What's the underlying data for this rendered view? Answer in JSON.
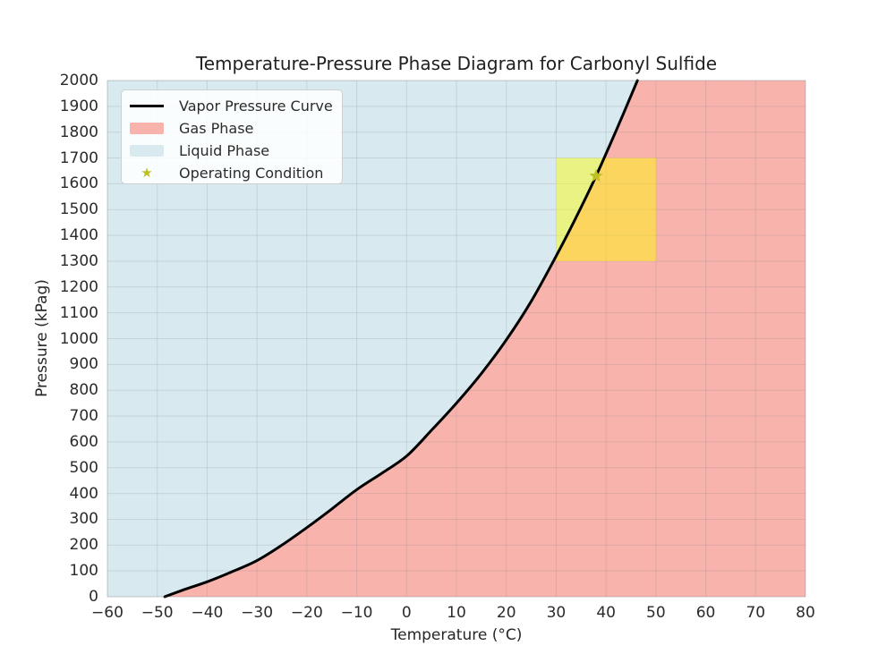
{
  "title": "Temperature-Pressure Phase Diagram for Carbonyl Sulfide",
  "chart_data": {
    "type": "line",
    "title": "Temperature-Pressure Phase Diagram for Carbonyl Sulfide",
    "xlabel": "Temperature (°C)",
    "ylabel": "Pressure (kPag)",
    "xlim": [
      -60,
      80
    ],
    "ylim": [
      0,
      2000
    ],
    "x_ticks": [
      -60,
      -50,
      -40,
      -30,
      -20,
      -10,
      0,
      10,
      20,
      30,
      40,
      50,
      60,
      70,
      80
    ],
    "y_ticks": [
      0,
      100,
      200,
      300,
      400,
      500,
      600,
      700,
      800,
      900,
      1000,
      1100,
      1200,
      1300,
      1400,
      1500,
      1600,
      1700,
      1800,
      1900,
      2000
    ],
    "grid": true,
    "legend_position": "upper left",
    "series": [
      {
        "name": "Vapor Pressure Curve",
        "color": "#000000",
        "x": [
          -48.5,
          -45,
          -40,
          -35,
          -30,
          -25,
          -20,
          -15,
          -10,
          -5,
          0,
          5,
          10,
          15,
          20,
          25,
          30,
          34,
          38,
          42,
          46.3
        ],
        "y": [
          0,
          25,
          58,
          97,
          140,
          200,
          268,
          340,
          415,
          478,
          545,
          645,
          750,
          865,
          995,
          1145,
          1320,
          1470,
          1630,
          1805,
          2000
        ]
      }
    ],
    "regions": [
      {
        "name": "Gas Phase",
        "position": "right-of-curve",
        "color": "#f9b3ad"
      },
      {
        "name": "Liquid Phase",
        "position": "left-of-curve",
        "color": "#d8eaf0"
      },
      {
        "name": "Operating Window",
        "x": [
          30,
          50
        ],
        "y": [
          1300,
          1700
        ],
        "color": "#ffff00",
        "opacity": 0.45
      }
    ],
    "operating_point": {
      "label": "Operating Condition",
      "x": 38,
      "y": 1630,
      "marker": "star",
      "color": "#bdbf25"
    }
  },
  "legend": {
    "items": [
      {
        "label": "Vapor Pressure Curve",
        "swatch": "line"
      },
      {
        "label": "Gas Phase",
        "swatch": "gas"
      },
      {
        "label": "Liquid Phase",
        "swatch": "liquid"
      },
      {
        "label": "Operating Condition",
        "swatch": "star"
      }
    ]
  },
  "colors": {
    "gas_fill": "#f9b3ad",
    "liquid_fill": "#d8eaf0",
    "window_fill": "#ffff00",
    "curve": "#000000",
    "star": "#bdbf25",
    "grid": "rgba(130,130,130,0.22)",
    "text": "#262626"
  }
}
